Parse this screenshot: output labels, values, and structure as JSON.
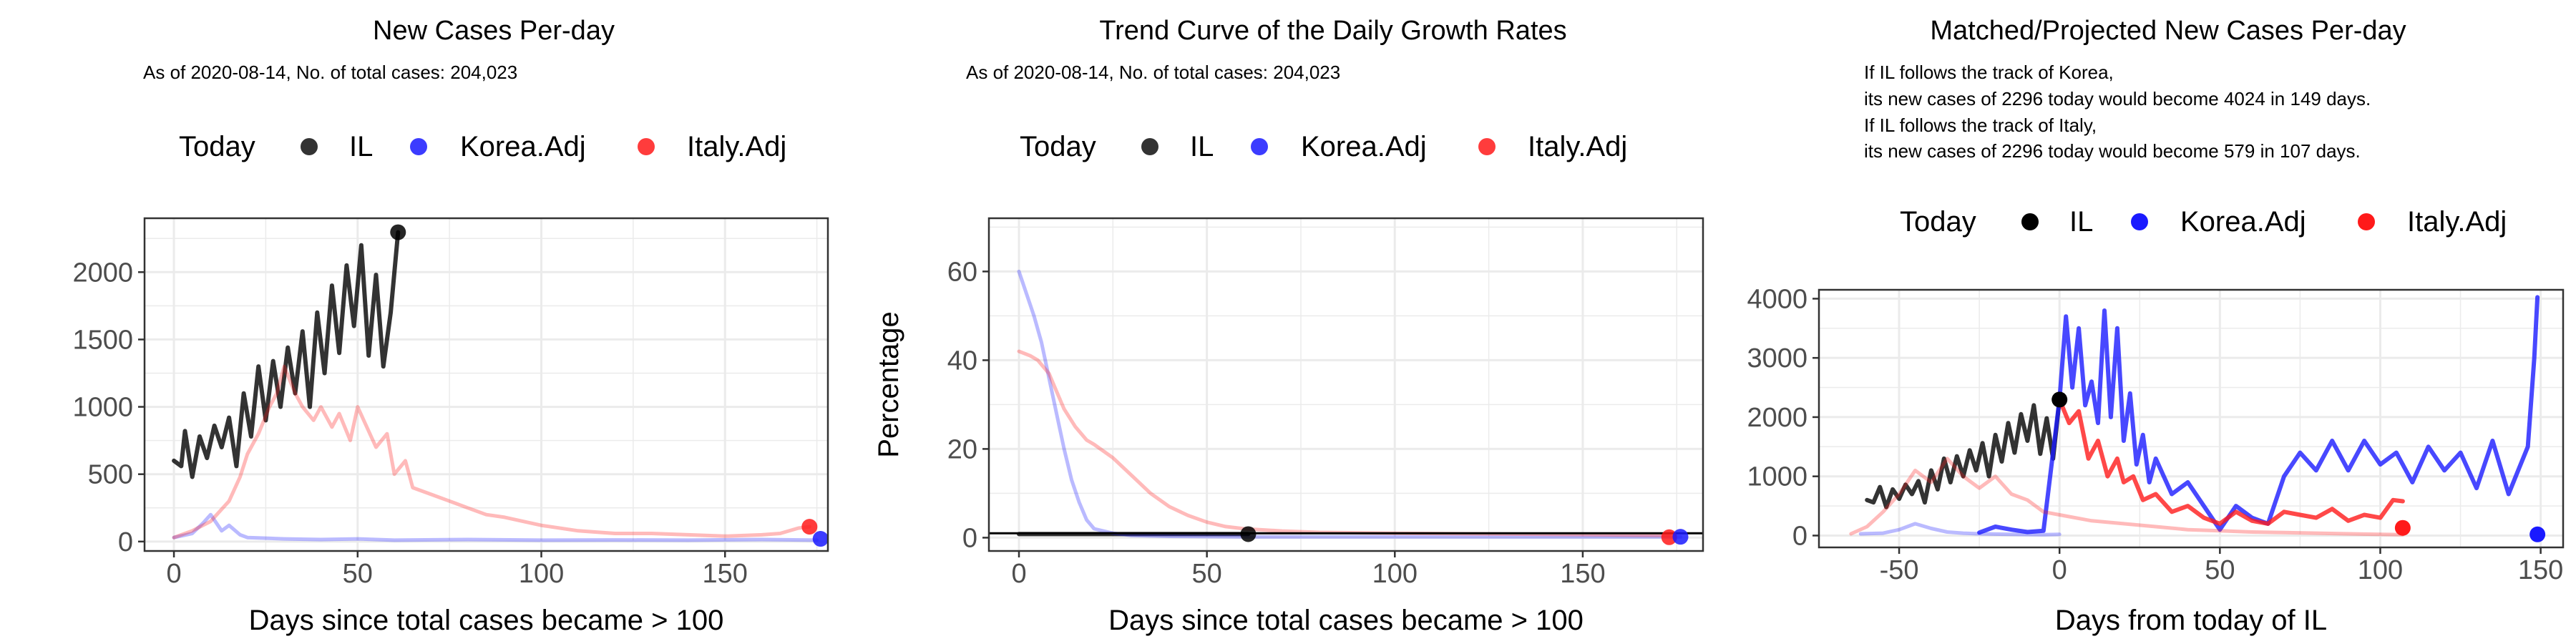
{
  "legend": {
    "title": "Today",
    "items": [
      "IL",
      "Korea.Adj",
      "Italy.Adj"
    ]
  },
  "colors": {
    "il": "#000000",
    "korea": "#1a1aff",
    "italy": "#ff1a1a",
    "grid": "#ebebeb",
    "axis": "#333333"
  },
  "panel1": {
    "title": "New Cases Per-day",
    "subtitle": "As of 2020-08-14, No. of total cases: 204,023"
  },
  "panel2": {
    "title": "Trend Curve of the Daily Growth Rates",
    "subtitle": "As of 2020-08-14, No. of total cases: 204,023"
  },
  "panel3": {
    "title": "Matched/Projected New Cases Per-day",
    "notes": [
      "If IL follows the track of Korea,",
      "its new cases of 2296 today would become 4024 in 149 days.",
      "If IL follows the track of Italy,",
      "its new cases of 2296 today would become 579 in 107 days."
    ]
  },
  "chart_data": [
    {
      "type": "line",
      "title": "New Cases Per-day",
      "xlabel": "Days since total cases became > 100",
      "ylabel": "",
      "xlim": [
        -8,
        178
      ],
      "ylim": [
        -70,
        2400
      ],
      "xticks": [
        0,
        50,
        100,
        150
      ],
      "yticks": [
        0,
        500,
        1000,
        1500,
        2000
      ],
      "grid": true,
      "legend_position": "top",
      "series": [
        {
          "name": "IL",
          "style": "solid",
          "x": [
            0,
            2,
            3,
            5,
            7,
            9,
            11,
            13,
            15,
            17,
            19,
            21,
            23,
            25,
            27,
            29,
            31,
            33,
            35,
            37,
            39,
            41,
            43,
            45,
            47,
            49,
            51,
            53,
            55,
            57,
            59,
            61
          ],
          "y": [
            600,
            560,
            820,
            480,
            780,
            620,
            860,
            700,
            920,
            560,
            1100,
            780,
            1300,
            900,
            1340,
            1000,
            1440,
            1100,
            1560,
            1000,
            1700,
            1250,
            1900,
            1400,
            2050,
            1600,
            2200,
            1380,
            1980,
            1300,
            1700,
            2296
          ]
        },
        {
          "name": "Korea.Adj",
          "style": "faded",
          "x": [
            0,
            5,
            8,
            10,
            13,
            15,
            18,
            20,
            25,
            30,
            40,
            50,
            60,
            80,
            100,
            120,
            140,
            160,
            175
          ],
          "y": [
            30,
            60,
            140,
            200,
            80,
            120,
            50,
            30,
            25,
            20,
            15,
            20,
            10,
            15,
            10,
            12,
            10,
            15,
            10
          ]
        },
        {
          "name": "Italy.Adj",
          "style": "faded",
          "x": [
            0,
            5,
            10,
            15,
            18,
            20,
            23,
            26,
            28,
            30,
            33,
            35,
            38,
            40,
            43,
            45,
            48,
            50,
            55,
            58,
            60,
            63,
            65,
            70,
            75,
            80,
            85,
            90,
            95,
            100,
            110,
            120,
            130,
            140,
            150,
            160,
            165,
            170,
            173
          ],
          "y": [
            30,
            80,
            150,
            300,
            480,
            650,
            800,
            1000,
            1100,
            1300,
            1100,
            1000,
            900,
            1000,
            850,
            950,
            750,
            1000,
            700,
            800,
            500,
            600,
            400,
            350,
            300,
            250,
            200,
            180,
            150,
            120,
            80,
            60,
            60,
            50,
            40,
            50,
            60,
            100,
            110
          ]
        }
      ],
      "today_points": [
        {
          "series": "IL",
          "x": 61,
          "y": 2296
        },
        {
          "series": "Italy.Adj",
          "x": 173,
          "y": 110
        },
        {
          "series": "Korea.Adj",
          "x": 176,
          "y": 20
        }
      ]
    },
    {
      "type": "line",
      "title": "Trend Curve of the Daily Growth Rates",
      "xlabel": "Days since total cases became > 100",
      "ylabel": "Percentage",
      "xlim": [
        -8,
        182
      ],
      "ylim": [
        -3,
        72
      ],
      "xticks": [
        0,
        50,
        100,
        150
      ],
      "yticks": [
        0,
        20,
        40,
        60
      ],
      "grid": true,
      "hline": 1,
      "legend_position": "top",
      "series": [
        {
          "name": "IL",
          "style": "solid",
          "x": [
            0,
            10,
            20,
            30,
            40,
            50,
            61
          ],
          "y": [
            0.8,
            0.8,
            0.8,
            0.8,
            0.8,
            0.8,
            0.8
          ]
        },
        {
          "name": "Korea.Adj",
          "style": "faded",
          "x": [
            0,
            2,
            4,
            6,
            8,
            10,
            12,
            14,
            16,
            18,
            20,
            25,
            30,
            40,
            60,
            100,
            140,
            176
          ],
          "y": [
            60,
            55,
            50,
            44,
            36,
            28,
            20,
            13,
            8,
            4,
            2,
            1,
            0.5,
            0.3,
            0.2,
            0.2,
            0.2,
            0.2
          ]
        },
        {
          "name": "Italy.Adj",
          "style": "faded",
          "x": [
            0,
            3,
            5,
            8,
            10,
            12,
            15,
            18,
            20,
            25,
            30,
            35,
            40,
            45,
            50,
            55,
            60,
            70,
            80,
            100,
            130,
            150,
            173
          ],
          "y": [
            42,
            41,
            40,
            37,
            33,
            29,
            25,
            22,
            21,
            18,
            14,
            10,
            7,
            5,
            3.5,
            2.5,
            2,
            1.5,
            1.2,
            1,
            0.8,
            0.7,
            0.5
          ]
        }
      ],
      "today_points": [
        {
          "series": "IL",
          "x": 61,
          "y": 0.8
        },
        {
          "series": "Italy.Adj",
          "x": 173,
          "y": 0.1
        },
        {
          "series": "Korea.Adj",
          "x": 176,
          "y": 0.2
        }
      ]
    },
    {
      "type": "line",
      "title": "Matched/Projected New Cases Per-day",
      "xlabel": "Days from today of IL",
      "ylabel": "",
      "xlim": [
        -75,
        157
      ],
      "ylim": [
        -200,
        4150
      ],
      "xticks": [
        -50,
        0,
        50,
        100,
        150
      ],
      "yticks": [
        0,
        1000,
        2000,
        3000,
        4000
      ],
      "grid": true,
      "legend_position": "top",
      "series": [
        {
          "name": "IL",
          "style": "solid",
          "x": [
            -60,
            -58,
            -56,
            -54,
            -52,
            -50,
            -48,
            -46,
            -44,
            -42,
            -40,
            -38,
            -36,
            -34,
            -32,
            -30,
            -28,
            -26,
            -24,
            -22,
            -20,
            -18,
            -16,
            -14,
            -12,
            -10,
            -8,
            -6,
            -4,
            -2,
            0
          ],
          "y": [
            600,
            560,
            820,
            480,
            780,
            620,
            860,
            700,
            920,
            560,
            1100,
            780,
            1300,
            900,
            1340,
            1000,
            1440,
            1100,
            1560,
            1000,
            1700,
            1250,
            1900,
            1400,
            2050,
            1600,
            2200,
            1380,
            1980,
            1300,
            2296
          ]
        },
        {
          "name": "Korea.Adj",
          "style": "faded",
          "x": [
            -62,
            -55,
            -50,
            -45,
            -40,
            -35,
            -30,
            -25,
            -20,
            -15,
            -10,
            -5,
            0
          ],
          "y": [
            30,
            40,
            100,
            200,
            120,
            60,
            40,
            30,
            25,
            20,
            18,
            15,
            20
          ]
        },
        {
          "name": "Korea.Adj",
          "style": "solid",
          "x": [
            -25,
            -20,
            -15,
            -10,
            -5,
            0,
            2,
            4,
            6,
            8,
            10,
            12,
            14,
            16,
            18,
            20,
            22,
            24,
            26,
            28,
            30,
            35,
            40,
            45,
            50,
            55,
            60,
            65,
            70,
            75,
            80,
            85,
            90,
            95,
            100,
            105,
            110,
            115,
            120,
            125,
            130,
            135,
            140,
            143,
            146,
            148,
            149
          ],
          "y": [
            50,
            150,
            100,
            60,
            80,
            2296,
            3700,
            2500,
            3500,
            2200,
            2600,
            1900,
            3800,
            2000,
            3500,
            1600,
            2400,
            1200,
            1700,
            900,
            1300,
            700,
            900,
            500,
            100,
            500,
            300,
            200,
            1000,
            1400,
            1100,
            1600,
            1100,
            1600,
            1200,
            1400,
            900,
            1500,
            1100,
            1400,
            800,
            1600,
            700,
            1100,
            1500,
            3000,
            4024
          ]
        },
        {
          "name": "Italy.Adj",
          "style": "faded",
          "x": [
            -65,
            -60,
            -55,
            -50,
            -45,
            -40,
            -35,
            -30,
            -25,
            -20,
            -15,
            -10,
            -5,
            0,
            10,
            20,
            30,
            40,
            50,
            60,
            70,
            80,
            90,
            100,
            107
          ],
          "y": [
            30,
            150,
            400,
            700,
            1100,
            900,
            1300,
            1000,
            800,
            1000,
            700,
            600,
            400,
            350,
            250,
            200,
            150,
            100,
            80,
            60,
            50,
            40,
            30,
            20,
            15
          ]
        },
        {
          "name": "Italy.Adj",
          "style": "solid",
          "x": [
            0,
            3,
            6,
            9,
            12,
            15,
            18,
            20,
            23,
            26,
            30,
            35,
            40,
            45,
            50,
            55,
            60,
            65,
            70,
            75,
            80,
            85,
            90,
            95,
            100,
            104,
            107
          ],
          "y": [
            2296,
            1900,
            2100,
            1300,
            1600,
            1000,
            1300,
            900,
            1000,
            600,
            700,
            400,
            500,
            300,
            200,
            400,
            250,
            200,
            400,
            350,
            300,
            450,
            250,
            350,
            300,
            600,
            579
          ]
        }
      ],
      "today_points": [
        {
          "series": "IL",
          "x": 0,
          "y": 2296
        },
        {
          "series": "Italy.Adj",
          "x": 107,
          "y": 130
        },
        {
          "series": "Korea.Adj",
          "x": 149,
          "y": 20
        }
      ]
    }
  ]
}
